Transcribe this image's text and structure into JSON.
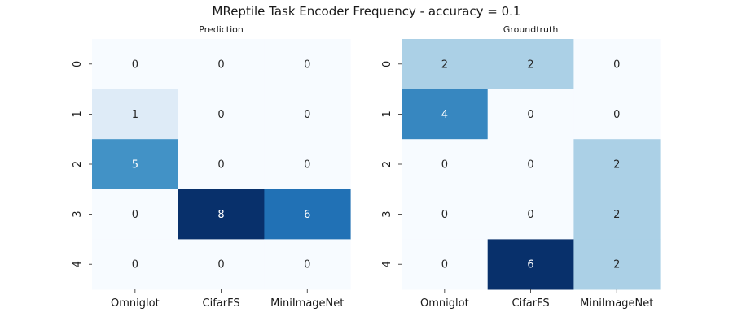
{
  "figure": {
    "title": "MReptile Task Encoder Frequency - accuracy = 0.1"
  },
  "colormap": {
    "name": "Blues",
    "stops": [
      "#f7fbff",
      "#deebf7",
      "#c6dbef",
      "#9ecae1",
      "#6baed6",
      "#4292c6",
      "#2171b5",
      "#08519c",
      "#08306b"
    ]
  },
  "chart_data": [
    {
      "type": "heatmap",
      "title": "Prediction",
      "xlabel": "",
      "ylabel": "",
      "x_categories": [
        "Omniglot",
        "CifarFS",
        "MiniImageNet"
      ],
      "y_categories": [
        "0",
        "1",
        "2",
        "3",
        "4"
      ],
      "values": [
        [
          0,
          0,
          0
        ],
        [
          1,
          0,
          0
        ],
        [
          5,
          0,
          0
        ],
        [
          0,
          8,
          6
        ],
        [
          0,
          0,
          0
        ]
      ],
      "color_range": [
        0,
        8
      ],
      "annotations": true,
      "colorbar": false
    },
    {
      "type": "heatmap",
      "title": "Groundtruth",
      "xlabel": "",
      "ylabel": "",
      "x_categories": [
        "Omniglot",
        "CifarFS",
        "MiniImageNet"
      ],
      "y_categories": [
        "0",
        "1",
        "2",
        "3",
        "4"
      ],
      "values": [
        [
          2,
          2,
          0
        ],
        [
          4,
          0,
          0
        ],
        [
          0,
          0,
          2
        ],
        [
          0,
          0,
          2
        ],
        [
          0,
          6,
          2
        ]
      ],
      "color_range": [
        0,
        6
      ],
      "annotations": true,
      "colorbar": false
    }
  ]
}
